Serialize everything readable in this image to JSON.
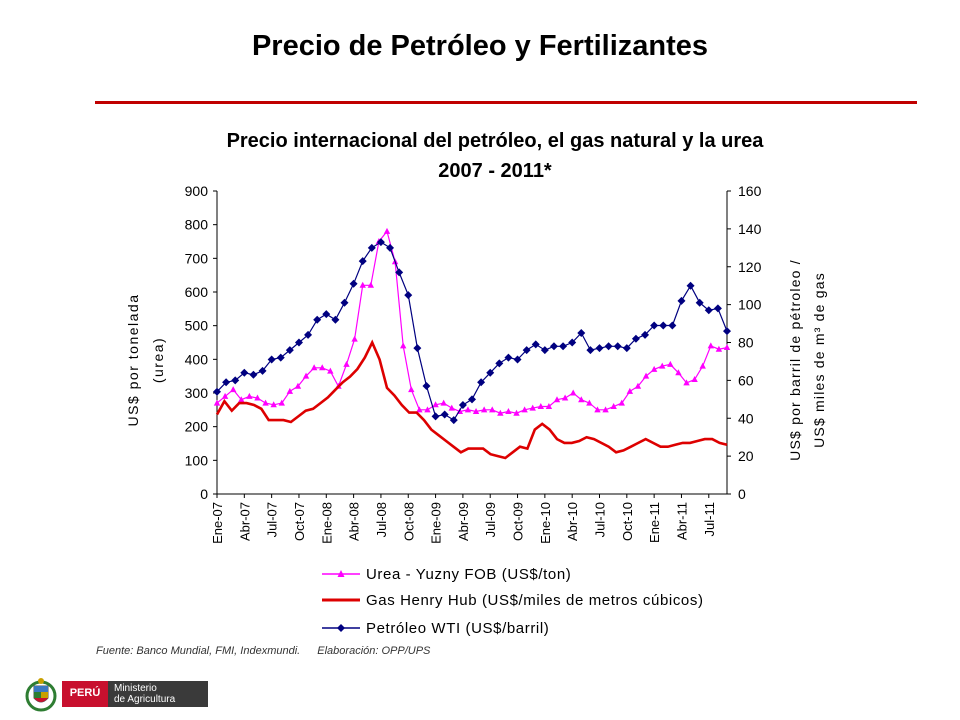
{
  "slide": {
    "title": "Precio de Petróleo y Fertilizantes",
    "source": "Fuente: Banco Mundial, FMI, Indexmundi.",
    "elaboration": "Elaboración: OPP/UPS",
    "logo": {
      "country": "PERÚ",
      "ministry_line1": "Ministerio",
      "ministry_line2": "de Agricultura"
    }
  },
  "colors": {
    "urea": "#ff00ff",
    "gas": "#dd0000",
    "oil": "#000080",
    "rule": "#c00000"
  },
  "chart_data": {
    "type": "line",
    "title": "Precio internacional del petróleo, el gas natural y la urea",
    "subtitle": "2007 - 2011*",
    "ylabel_left": [
      "US$ por tonelada",
      "(urea)"
    ],
    "ylabel_right": [
      "US$ por barril de pétroleo /",
      "US$ miles de m³ de gas"
    ],
    "ylim_left": [
      0,
      900
    ],
    "yticks_left": [
      0,
      100,
      200,
      300,
      400,
      500,
      600,
      700,
      800,
      900
    ],
    "ylim_right": [
      0,
      160
    ],
    "yticks_right": [
      0,
      20,
      40,
      60,
      80,
      100,
      120,
      140,
      160
    ],
    "x_tick_labels": [
      "Ene-07",
      "Abr-07",
      "Jul-07",
      "Oct-07",
      "Ene-08",
      "Abr-08",
      "Jul-08",
      "Oct-08",
      "Ene-09",
      "Abr-09",
      "Jul-09",
      "Oct-09",
      "Ene-10",
      "Abr-10",
      "Jul-10",
      "Oct-10",
      "Ene-11",
      "Abr-11",
      "Jul-11"
    ],
    "legend_position": "bottom",
    "series": [
      {
        "name": "Urea - Yuzny FOB (US$/ton)",
        "axis": "left",
        "marker": "triangle",
        "values": [
          270,
          290,
          310,
          280,
          290,
          285,
          270,
          265,
          270,
          305,
          320,
          350,
          375,
          375,
          365,
          320,
          385,
          460,
          620,
          620,
          750,
          780,
          690,
          440,
          310,
          250,
          250,
          265,
          270,
          255,
          245,
          250,
          245,
          250,
          250,
          240,
          245,
          240,
          250,
          255,
          260,
          260,
          280,
          285,
          300,
          280,
          270,
          250,
          250,
          260,
          270,
          305,
          320,
          350,
          370,
          380,
          385,
          360,
          330,
          340,
          380,
          440,
          430,
          435
        ]
      },
      {
        "name": "Gas Henry Hub (US$/miles de metros cúbicos)",
        "axis": "right",
        "marker": "none",
        "values": [
          42,
          49,
          44,
          48,
          48,
          47,
          45,
          39,
          39,
          39,
          38,
          41,
          44,
          45,
          48,
          51,
          55,
          59,
          62,
          66,
          72,
          80,
          71,
          56,
          52,
          47,
          43,
          43,
          39,
          34,
          31,
          28,
          25,
          22,
          24,
          24,
          24,
          21,
          20,
          19,
          22,
          25,
          24,
          34,
          37,
          34,
          29,
          27,
          27,
          28,
          30,
          29,
          27,
          25,
          22,
          23,
          25,
          27,
          29,
          27,
          25,
          25,
          26,
          27,
          27,
          28,
          29,
          29,
          27,
          26
        ]
      },
      {
        "name": "Petróleo WTI (US$/barril)",
        "axis": "right",
        "marker": "diamond",
        "values": [
          54,
          59,
          60,
          64,
          63,
          65,
          71,
          72,
          76,
          80,
          84,
          92,
          95,
          92,
          101,
          111,
          123,
          130,
          133,
          130,
          117,
          105,
          77,
          57,
          41,
          42,
          39,
          47,
          50,
          59,
          64,
          69,
          72,
          71,
          76,
          79,
          76,
          78,
          78,
          80,
          85,
          76,
          77,
          78,
          78,
          77,
          82,
          84,
          89,
          89,
          89,
          102,
          110,
          101,
          97,
          98,
          86
        ]
      }
    ]
  }
}
